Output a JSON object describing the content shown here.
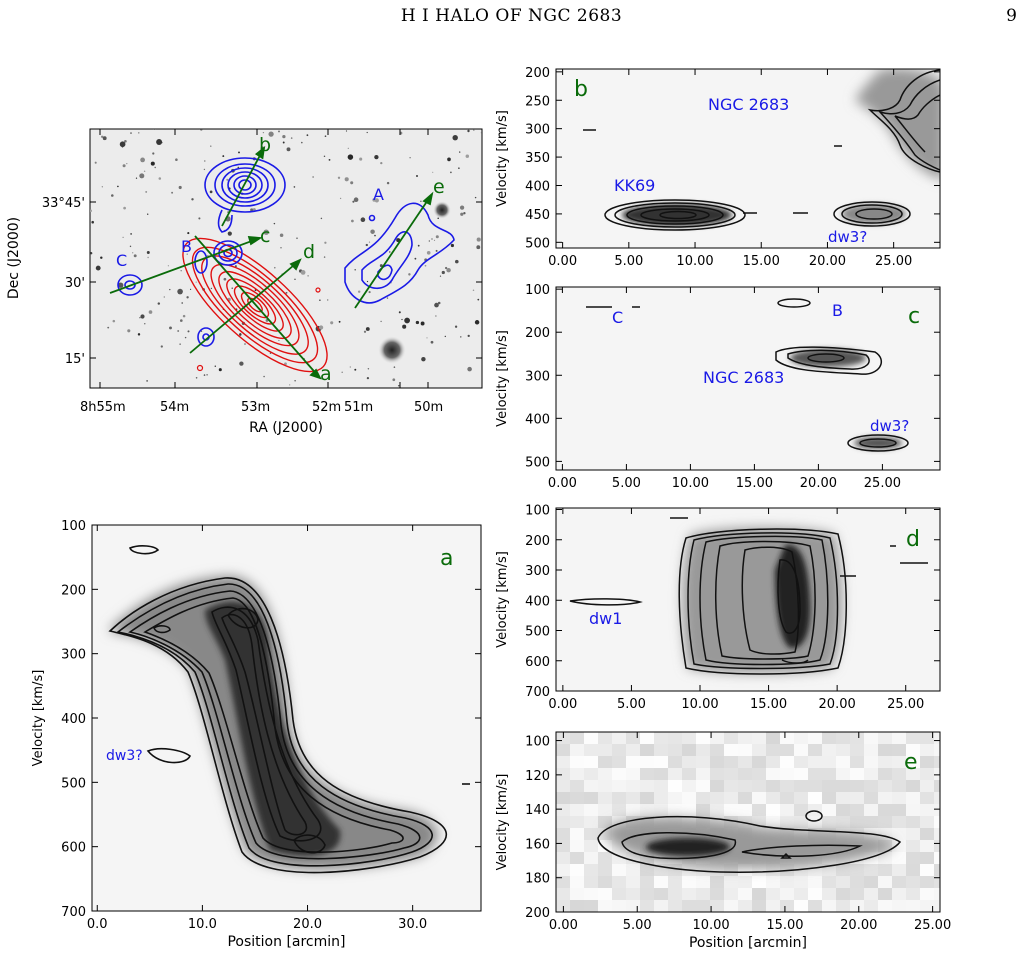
{
  "header": {
    "running_title": "H I HALO OF NGC 2683",
    "page_number": "9"
  },
  "map": {
    "ra_ticks": [
      "8h55m",
      "54m",
      "53m",
      "52m",
      "51m",
      "50m"
    ],
    "dec_ticks": [
      "33°45'",
      "30'",
      "15'"
    ],
    "xlabel": "RA (J2000)",
    "ylabel": "Dec (J2000)",
    "cut_labels": [
      "b",
      "e",
      "c",
      "d",
      "a"
    ],
    "source_labels": [
      "A",
      "B",
      "C"
    ],
    "cut_color": "#0a6b0a",
    "source_color": "#1a1ae6",
    "galaxy_contour_color": "#e01010"
  },
  "chart_data": [
    {
      "panel": "a",
      "type": "heatmap",
      "xlabel": "Position [arcmin]",
      "ylabel": "Velocity [km/s]",
      "xlim": [
        -0.5,
        36.5
      ],
      "ylim": [
        700,
        100
      ],
      "xticks": [
        "0.0",
        "10.0",
        "20.0",
        "30.0"
      ],
      "xtick_values": [
        0,
        10,
        20,
        30
      ],
      "yticks": [
        100,
        200,
        300,
        400,
        500,
        600,
        700
      ],
      "annotations": [
        {
          "text": "dw3?",
          "x": 6.5,
          "y": 455
        }
      ],
      "features": [
        {
          "name": "NGC 2683",
          "position_range": [
            1,
            35
          ],
          "velocity_range": [
            170,
            650
          ],
          "peak": [
            20.5,
            605
          ]
        },
        {
          "name": "dw3?",
          "position_range": [
            5.5,
            8
          ],
          "velocity_range": [
            445,
            470
          ]
        }
      ]
    },
    {
      "panel": "b",
      "type": "heatmap",
      "xlabel": "",
      "ylabel": "Velocity [km/s]",
      "xlim": [
        -0.5,
        28.5
      ],
      "ylim": [
        510,
        195
      ],
      "xticks": [
        "0.00",
        "5.00",
        "10.00",
        "15.00",
        "20.00",
        "25.00"
      ],
      "xtick_values": [
        0,
        5,
        10,
        15,
        20,
        25
      ],
      "yticks": [
        200,
        250,
        300,
        350,
        400,
        450,
        500
      ],
      "annotations": [
        {
          "text": "NGC 2683",
          "x": 13.5,
          "y": 265
        },
        {
          "text": "KK69",
          "x": 6.5,
          "y": 415
        },
        {
          "text": "dw3?",
          "x": 22,
          "y": 495
        }
      ],
      "features": [
        {
          "name": "KK69",
          "position_range": [
            3.5,
            15.5
          ],
          "velocity_range": [
            440,
            480
          ]
        },
        {
          "name": "dw3?",
          "position_range": [
            20,
            27.5
          ],
          "velocity_range": [
            440,
            480
          ]
        },
        {
          "name": "NGC 2683",
          "position_range": [
            22,
            28.5
          ],
          "velocity_range": [
            205,
            385
          ]
        }
      ]
    },
    {
      "panel": "c",
      "type": "heatmap",
      "xlabel": "",
      "ylabel": "Velocity [km/s]",
      "xlim": [
        -0.5,
        29.5
      ],
      "ylim": [
        520,
        95
      ],
      "xticks": [
        "0.00",
        "5.00",
        "10.00",
        "15.00",
        "20.00",
        "25.00"
      ],
      "xtick_values": [
        0,
        5,
        10,
        15,
        20,
        25
      ],
      "yticks": [
        100,
        200,
        300,
        400,
        500
      ],
      "annotations": [
        {
          "text": "C",
          "x": 3.5,
          "y": 165
        },
        {
          "text": "B",
          "x": 20.5,
          "y": 145
        },
        {
          "text": "NGC 2683",
          "x": 17,
          "y": 285
        },
        {
          "text": "dw3?",
          "x": 24,
          "y": 420
        }
      ],
      "features": [
        {
          "name": "NGC 2683",
          "position_range": [
            17,
            23.5
          ],
          "velocity_range": [
            235,
            290
          ]
        },
        {
          "name": "dw3?",
          "position_range": [
            20.5,
            25
          ],
          "velocity_range": [
            440,
            475
          ]
        },
        {
          "name": "B",
          "position_range": [
            18,
            20
          ],
          "velocity_range": [
            125,
            140
          ]
        }
      ]
    },
    {
      "panel": "d",
      "type": "heatmap",
      "xlabel": "",
      "ylabel": "Velocity [km/s]",
      "xlim": [
        -0.5,
        27.5
      ],
      "ylim": [
        700,
        95
      ],
      "xticks": [
        "0.00",
        "5.00",
        "10.00",
        "15.00",
        "20.00",
        "25.00"
      ],
      "xtick_values": [
        0,
        5,
        10,
        15,
        20,
        25
      ],
      "yticks": [
        100,
        200,
        300,
        400,
        500,
        600,
        700
      ],
      "annotations": [
        {
          "text": "dw1",
          "x": 3,
          "y": 470
        }
      ],
      "features": [
        {
          "name": "NGC 2683",
          "position_range": [
            9,
            21
          ],
          "velocity_range": [
            180,
            640
          ],
          "peak": [
            15,
            370
          ]
        },
        {
          "name": "dw1",
          "position_range": [
            1,
            5
          ],
          "velocity_range": [
            400,
            415
          ]
        }
      ]
    },
    {
      "panel": "e",
      "type": "heatmap",
      "xlabel": "Position [arcmin]",
      "ylabel": "Velocity [km/s]",
      "xlim": [
        -0.5,
        25.5
      ],
      "ylim": [
        200,
        95
      ],
      "xticks": [
        "0.00",
        "5.00",
        "10.00",
        "15.00",
        "20.00",
        "25.00"
      ],
      "xtick_values": [
        0,
        5,
        10,
        15,
        20,
        25
      ],
      "yticks": [
        100,
        120,
        140,
        160,
        180,
        200
      ],
      "annotations": [],
      "features": [
        {
          "name": "A",
          "position_range": [
            2.5,
            23
          ],
          "velocity_range": [
            145,
            178
          ],
          "peak": [
            8.5,
            163
          ]
        }
      ]
    }
  ]
}
